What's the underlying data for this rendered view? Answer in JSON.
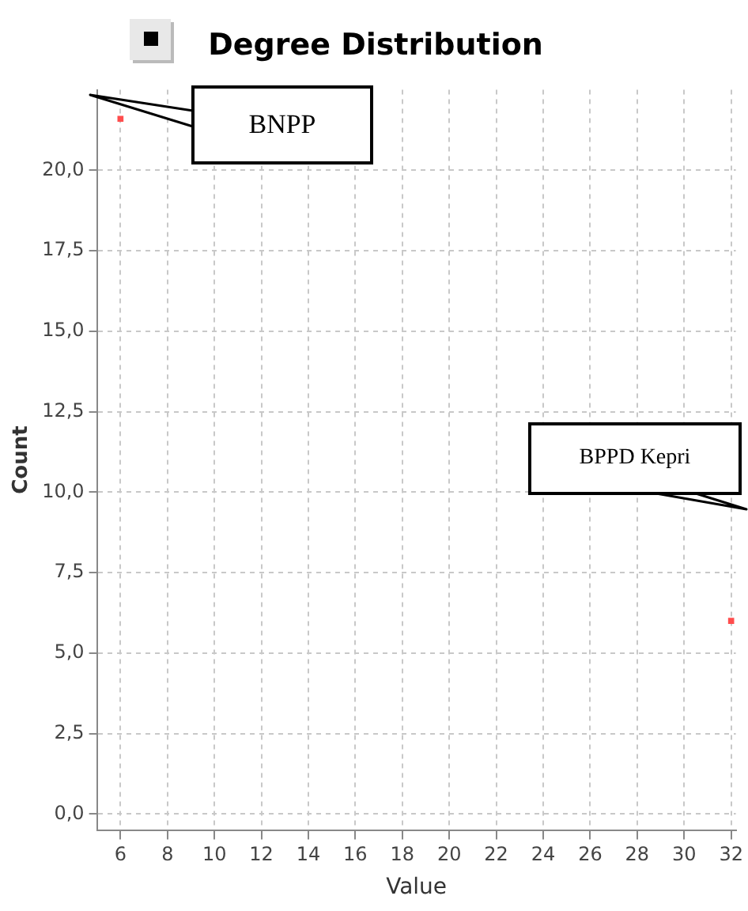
{
  "chart_data": {
    "type": "scatter",
    "title": "Degree Distribution",
    "xlabel": "Value",
    "ylabel": "Count",
    "series": [
      {
        "color": "#ff4d4d",
        "x": [
          6,
          32
        ],
        "values": [
          21.6,
          6
        ]
      }
    ],
    "xlim": [
      5,
      32.2
    ],
    "xticks": [
      6,
      8,
      10,
      12,
      14,
      16,
      18,
      20,
      22,
      24,
      26,
      28,
      30,
      32
    ],
    "ylim": [
      -0.5,
      22.5
    ],
    "yticks": [
      {
        "value": 0,
        "label": "0,0"
      },
      {
        "value": 2.5,
        "label": "2,5"
      },
      {
        "value": 5,
        "label": "5,0"
      },
      {
        "value": 7.5,
        "label": "7,5"
      },
      {
        "value": 10,
        "label": "10,0"
      },
      {
        "value": 12.5,
        "label": "12,5"
      },
      {
        "value": 15,
        "label": "15,0"
      },
      {
        "value": 17.5,
        "label": "17,5"
      },
      {
        "value": 20,
        "label": "20,0"
      }
    ],
    "grid": true,
    "marker": "square",
    "annotations": [
      "BNPP",
      "BPPD Kepri"
    ]
  }
}
